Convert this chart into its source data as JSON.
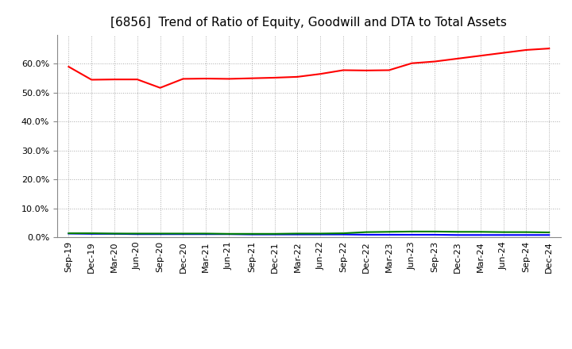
{
  "title": "[6856]  Trend of Ratio of Equity, Goodwill and DTA to Total Assets",
  "x_labels": [
    "Sep-19",
    "Dec-19",
    "Mar-20",
    "Jun-20",
    "Sep-20",
    "Dec-20",
    "Mar-21",
    "Jun-21",
    "Sep-21",
    "Dec-21",
    "Mar-22",
    "Jun-22",
    "Sep-22",
    "Dec-22",
    "Mar-23",
    "Jun-23",
    "Sep-23",
    "Dec-23",
    "Mar-24",
    "Jun-24",
    "Sep-24",
    "Dec-24"
  ],
  "equity": [
    0.59,
    0.545,
    0.546,
    0.546,
    0.517,
    0.548,
    0.549,
    0.548,
    0.55,
    0.552,
    0.555,
    0.565,
    0.578,
    0.577,
    0.578,
    0.602,
    0.608,
    0.618,
    0.628,
    0.638,
    0.648,
    0.653
  ],
  "goodwill": [
    0.013,
    0.012,
    0.012,
    0.011,
    0.011,
    0.011,
    0.011,
    0.011,
    0.01,
    0.01,
    0.01,
    0.01,
    0.01,
    0.009,
    0.009,
    0.009,
    0.009,
    0.008,
    0.008,
    0.008,
    0.008,
    0.008
  ],
  "dta": [
    0.014,
    0.014,
    0.013,
    0.013,
    0.013,
    0.013,
    0.013,
    0.012,
    0.012,
    0.012,
    0.013,
    0.013,
    0.014,
    0.018,
    0.019,
    0.02,
    0.02,
    0.019,
    0.019,
    0.018,
    0.018,
    0.017
  ],
  "equity_color": "#FF0000",
  "goodwill_color": "#0000FF",
  "dta_color": "#008000",
  "ylim": [
    0.0,
    0.7
  ],
  "yticks": [
    0.0,
    0.1,
    0.2,
    0.3,
    0.4,
    0.5,
    0.6
  ],
  "background_color": "#FFFFFF",
  "plot_bg_color": "#FFFFFF",
  "grid_color": "#AAAAAA",
  "title_fontsize": 11,
  "tick_fontsize": 8,
  "legend_fontsize": 9
}
